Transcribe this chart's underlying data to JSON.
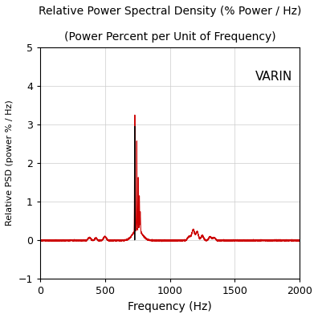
{
  "title_line1": "Relative Power Spectral Density (% Power / Hz)",
  "title_line2": "(Power Percent per Unit of Frequency)",
  "xlabel": "Frequency (Hz)",
  "ylabel": "Relative PSD (power % / Hz)",
  "annotation": "VARIN",
  "xlim": [
    0,
    2000
  ],
  "ylim": [
    -1,
    5
  ],
  "yticks": [
    -1,
    0,
    1,
    2,
    3,
    4,
    5
  ],
  "xticks": [
    0,
    500,
    1000,
    1500,
    2000
  ],
  "line_color": "#cc0000",
  "black_spike_color": "#000000",
  "grid_color": "#cccccc",
  "background_color": "#ffffff",
  "title_fontsize": 10,
  "label_fontsize": 10,
  "tick_fontsize": 9,
  "annotation_fontsize": 11,
  "peaks_main": [
    {
      "fc": 730,
      "amp": 3.0,
      "bw": 1.8
    },
    {
      "fc": 745,
      "amp": 2.3,
      "bw": 1.5
    },
    {
      "fc": 757,
      "amp": 1.35,
      "bw": 1.5
    },
    {
      "fc": 765,
      "amp": 0.9,
      "bw": 1.5
    },
    {
      "fc": 772,
      "amp": 0.5,
      "bw": 2.0
    }
  ],
  "peaks_broad": [
    {
      "fc": 750,
      "amp": 0.28,
      "bw": 35
    }
  ],
  "peaks_small_left": [
    {
      "fc": 380,
      "amp": 0.07,
      "bw": 10
    },
    {
      "fc": 430,
      "amp": 0.06,
      "bw": 8
    },
    {
      "fc": 500,
      "amp": 0.1,
      "bw": 10
    }
  ],
  "peaks_right": [
    {
      "fc": 1150,
      "amp": 0.1,
      "bw": 12
    },
    {
      "fc": 1180,
      "amp": 0.27,
      "bw": 10
    },
    {
      "fc": 1210,
      "amp": 0.22,
      "bw": 10
    },
    {
      "fc": 1250,
      "amp": 0.12,
      "bw": 10
    },
    {
      "fc": 1310,
      "amp": 0.09,
      "bw": 10
    },
    {
      "fc": 1340,
      "amp": 0.07,
      "bw": 10
    }
  ],
  "black_spike_fc": 730,
  "black_spike_amp": 3.0,
  "noise_std": 0.008
}
